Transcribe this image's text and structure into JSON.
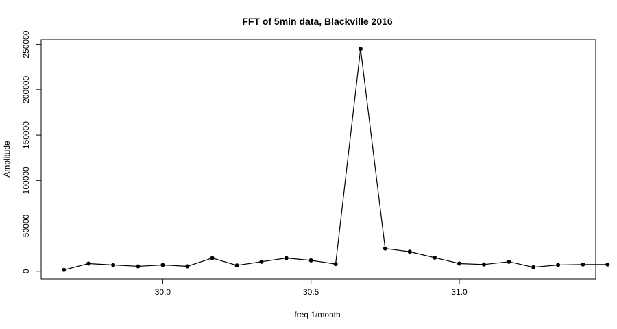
{
  "chart_data": {
    "type": "line",
    "title": "FFT of 5min data, Blackville 2016",
    "xlabel": "freq 1/month",
    "ylabel": "Amplitude",
    "xlim": [
      29.59,
      31.46
    ],
    "ylim": [
      -8500,
      255000
    ],
    "xticks": [
      30.0,
      30.5,
      31.0
    ],
    "xtick_labels": [
      "30.0",
      "30.5",
      "31.0"
    ],
    "yticks": [
      0,
      50000,
      100000,
      150000,
      200000,
      250000
    ],
    "ytick_labels": [
      "0",
      "50000",
      "100000",
      "150000",
      "200000",
      "250000"
    ],
    "grid": false,
    "legend": "none",
    "marker": "filled-circle",
    "line_color": "#000000",
    "x": [
      29.667,
      29.75,
      29.833,
      29.917,
      30.0,
      30.083,
      30.167,
      30.25,
      30.333,
      30.417,
      30.5,
      30.583,
      30.667,
      30.75,
      30.833,
      30.917,
      31.0,
      31.083,
      31.167,
      31.25,
      31.333,
      31.417,
      31.5
    ],
    "series": [
      {
        "values": [
          1500,
          8500,
          7000,
          5500,
          7000,
          5500,
          14500,
          6500,
          10500,
          14500,
          12000,
          8000,
          245000,
          25000,
          21500,
          15000,
          8500,
          7500,
          10500,
          4500,
          7000,
          7500,
          7500
        ]
      }
    ]
  }
}
